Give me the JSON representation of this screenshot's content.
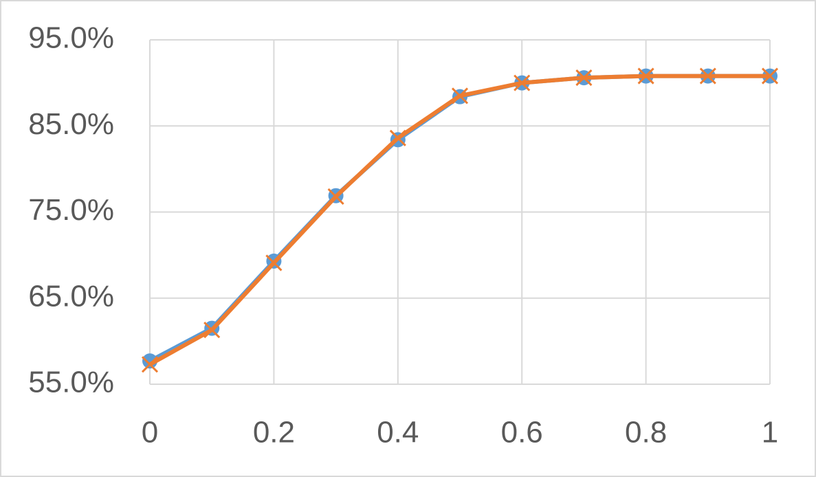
{
  "chart_data": {
    "type": "line",
    "x": [
      0,
      0.1,
      0.2,
      0.3,
      0.4,
      0.5,
      0.6,
      0.7,
      0.8,
      0.9,
      1
    ],
    "series": [
      {
        "color": "#5b9bd5",
        "marker": "circle",
        "values": [
          57.7,
          61.5,
          69.3,
          76.9,
          83.4,
          88.4,
          90.0,
          90.6,
          90.8,
          90.8,
          90.8
        ]
      },
      {
        "color": "#ed7d31",
        "marker": "x",
        "values": [
          57.3,
          61.3,
          69.1,
          76.8,
          83.6,
          88.5,
          90.0,
          90.6,
          90.8,
          90.8,
          90.8
        ]
      }
    ],
    "xlim": [
      0,
      1
    ],
    "xticks": [
      0,
      0.2,
      0.4,
      0.6,
      0.8,
      1
    ],
    "ylim": [
      55,
      95
    ],
    "yticks": [
      {
        "value": 55,
        "label": "55.0%"
      },
      {
        "value": 65,
        "label": "65.0%"
      },
      {
        "value": 75,
        "label": "75.0%"
      },
      {
        "value": 85,
        "label": "85.0%"
      },
      {
        "value": 95,
        "label": "95.0%"
      }
    ],
    "grid": true
  }
}
